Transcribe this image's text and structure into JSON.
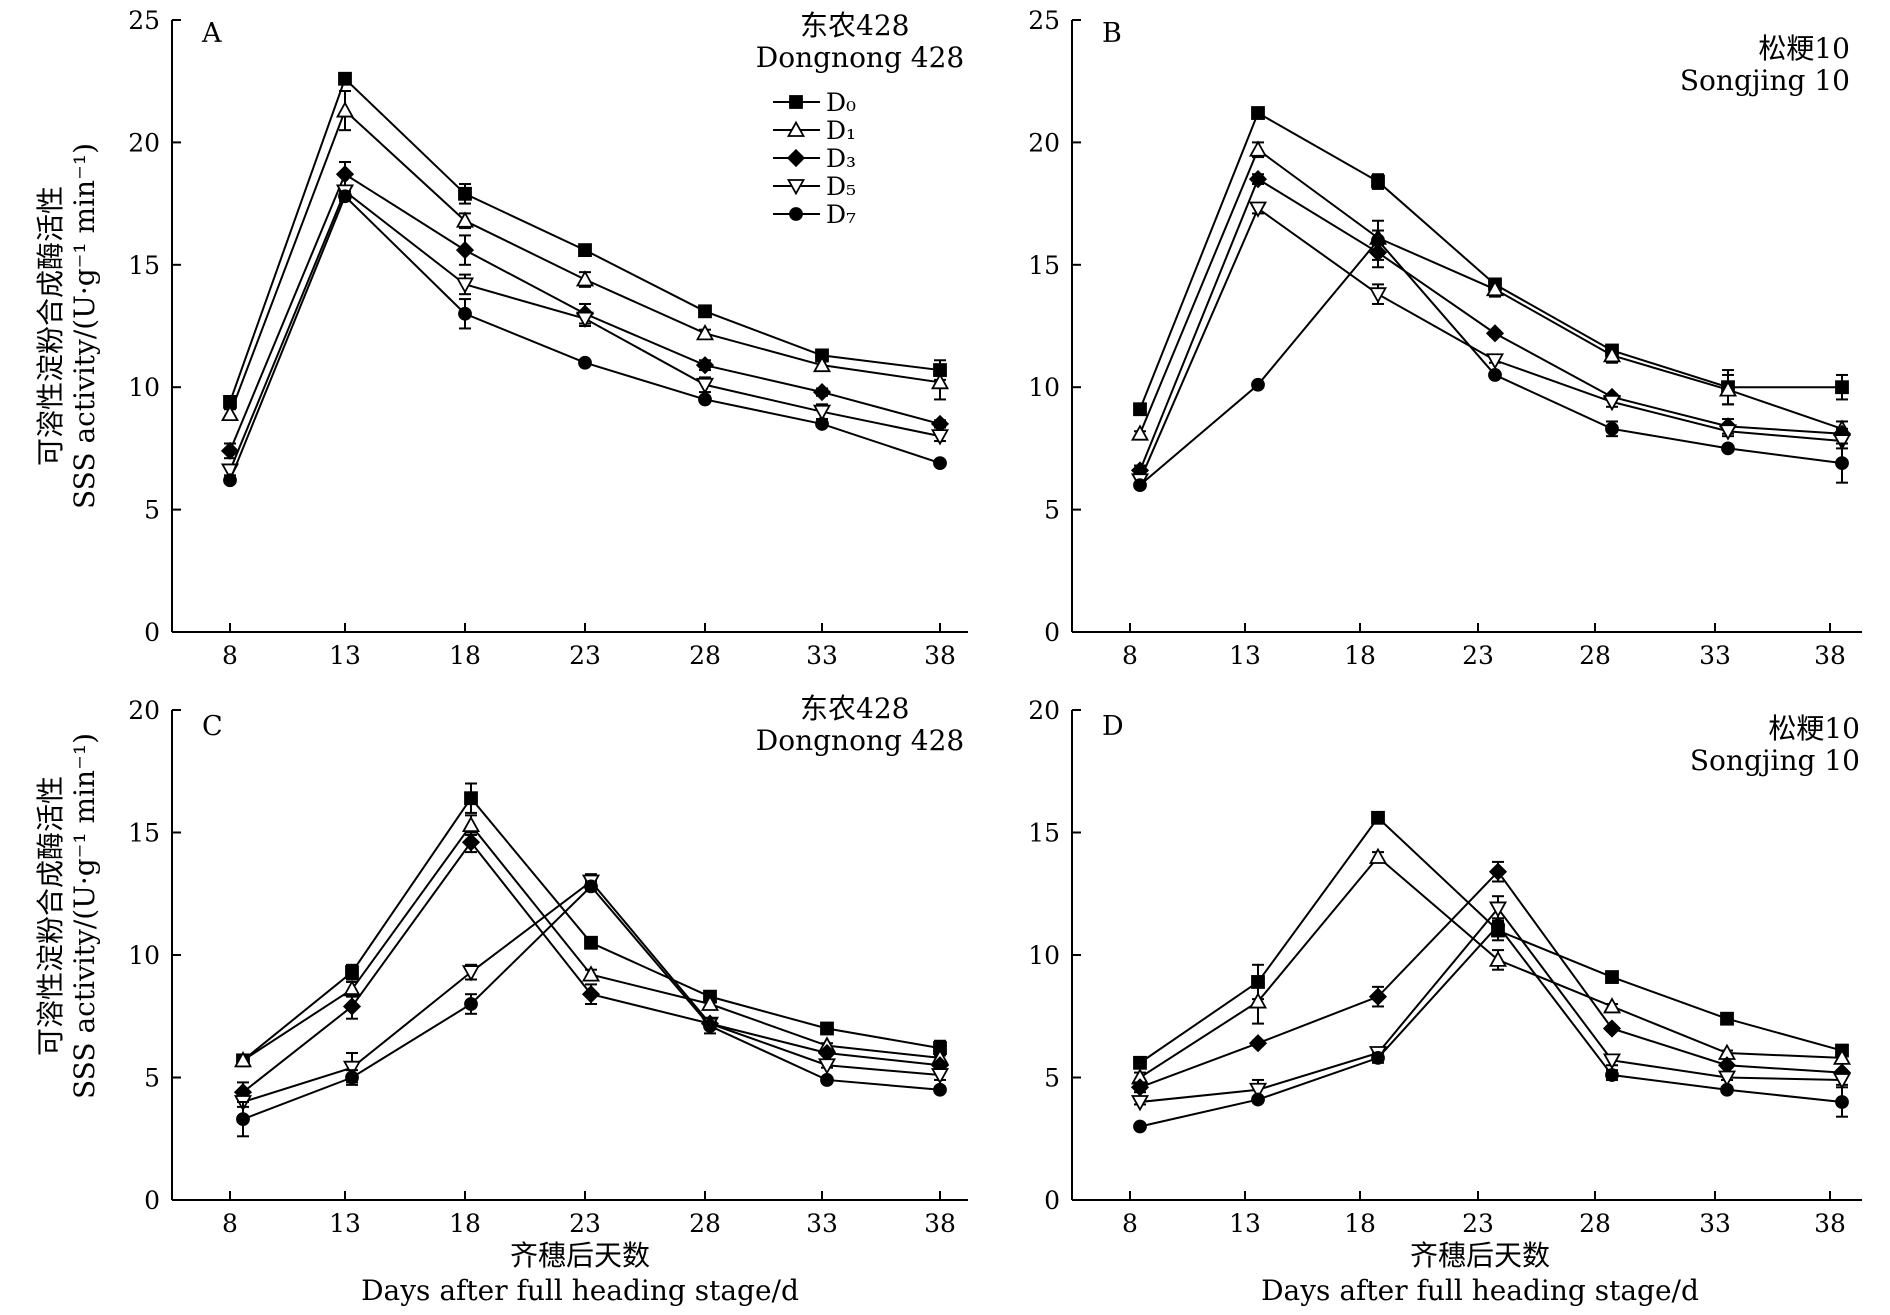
{
  "figure": {
    "ylabel_line1": "可溶性淀粉合成酶活性",
    "ylabel_line2": "SSS activity/(U·g⁻¹ min⁻¹)",
    "xlabel_line1": "齐穗后天数",
    "xlabel_line2": "Days after full heading stage/d"
  },
  "legend": {
    "entries": [
      {
        "label": "D₀",
        "marker": "square-filled"
      },
      {
        "label": "D₁",
        "marker": "triangle-up-open"
      },
      {
        "label": "D₃",
        "marker": "diamond-filled"
      },
      {
        "label": "D₅",
        "marker": "triangle-down-open"
      },
      {
        "label": "D₇",
        "marker": "circle-filled"
      }
    ]
  },
  "chart_data": [
    {
      "panel": "A",
      "type": "line",
      "cultivar_cn": "东农428",
      "cultivar_en": "Dongnong 428",
      "x": [
        8,
        13,
        18,
        23,
        28,
        33,
        38
      ],
      "xticks": [
        "8",
        "13",
        "18",
        "23",
        "28",
        "33",
        "38"
      ],
      "ylim": [
        0,
        25
      ],
      "yticks": [
        "0",
        "5",
        "10",
        "15",
        "20",
        "25"
      ],
      "error_bars": true,
      "legend_position": "top-right",
      "series": [
        {
          "name": "D₀",
          "marker": "square-filled",
          "values": [
            9.4,
            22.6,
            17.9,
            15.6,
            13.1,
            11.3,
            10.7
          ],
          "errors": [
            0.2,
            0.2,
            0.4,
            0.15,
            0.15,
            0.15,
            0.4
          ]
        },
        {
          "name": "D₁",
          "marker": "triangle-up-open",
          "values": [
            8.9,
            21.3,
            16.8,
            14.4,
            12.2,
            10.9,
            10.2
          ],
          "errors": [
            0.2,
            0.8,
            0.3,
            0.3,
            0.15,
            0.15,
            0.7
          ]
        },
        {
          "name": "D₃",
          "marker": "diamond-filled",
          "values": [
            7.4,
            18.7,
            15.6,
            13.0,
            10.9,
            9.8,
            8.5
          ],
          "errors": [
            0.3,
            0.5,
            0.6,
            0.4,
            0.2,
            0.15,
            0.15
          ]
        },
        {
          "name": "D₅",
          "marker": "triangle-down-open",
          "values": [
            6.6,
            18.0,
            14.2,
            12.8,
            10.1,
            9.0,
            8.0
          ],
          "errors": [
            0.2,
            0.2,
            0.4,
            0.3,
            0.3,
            0.3,
            0.2
          ]
        },
        {
          "name": "D₇",
          "marker": "circle-filled",
          "values": [
            6.2,
            17.8,
            13.0,
            11.0,
            9.5,
            8.5,
            6.9
          ],
          "errors": [
            0.1,
            0.2,
            0.6,
            0.1,
            0.1,
            0.1,
            0.1
          ]
        }
      ]
    },
    {
      "panel": "B",
      "type": "line",
      "cultivar_cn": "松粳10",
      "cultivar_en": "Songjing 10",
      "x": [
        8,
        13,
        18,
        23,
        28,
        33,
        38
      ],
      "xticks": [
        "8",
        "13",
        "18",
        "23",
        "28",
        "33",
        "38"
      ],
      "ylim": [
        0,
        25
      ],
      "yticks": [
        "0",
        "5",
        "10",
        "15",
        "20",
        "25"
      ],
      "error_bars": true,
      "series": [
        {
          "name": "D₀",
          "marker": "square-filled",
          "values": [
            9.1,
            21.2,
            18.4,
            14.2,
            11.5,
            10.0,
            10.0
          ],
          "errors": [
            0.1,
            0.1,
            0.3,
            0.2,
            0.2,
            0.7,
            0.5
          ]
        },
        {
          "name": "D₁",
          "marker": "triangle-up-open",
          "values": [
            8.1,
            19.7,
            16.1,
            14.0,
            11.3,
            9.9,
            8.3
          ],
          "errors": [
            0.1,
            0.3,
            0.3,
            0.3,
            0.3,
            0.6,
            0.3
          ]
        },
        {
          "name": "D₃",
          "marker": "diamond-filled",
          "values": [
            6.6,
            18.5,
            15.5,
            12.2,
            9.6,
            8.4,
            8.1
          ],
          "errors": [
            0.2,
            0.2,
            0.6,
            0.1,
            0.1,
            0.3,
            0.2
          ]
        },
        {
          "name": "D₅",
          "marker": "triangle-down-open",
          "values": [
            6.2,
            17.3,
            13.8,
            11.1,
            9.4,
            8.2,
            7.8
          ],
          "errors": [
            0.1,
            0.2,
            0.4,
            0.1,
            0.2,
            0.2,
            0.3
          ]
        },
        {
          "name": "D₇",
          "marker": "circle-filled",
          "values": [
            6.0,
            10.1,
            16.0,
            10.5,
            8.3,
            7.5,
            6.9
          ],
          "errors": [
            0.1,
            0.1,
            0.8,
            0.1,
            0.3,
            0.1,
            0.8
          ]
        }
      ]
    },
    {
      "panel": "C",
      "type": "line",
      "cultivar_cn": "东农428",
      "cultivar_en": "Dongnong 428",
      "x": [
        8,
        13,
        18,
        23,
        28,
        33,
        38
      ],
      "xticks": [
        "8",
        "13",
        "18",
        "23",
        "28",
        "33",
        "38"
      ],
      "ylim": [
        0,
        20
      ],
      "yticks": [
        "0",
        "5",
        "10",
        "15",
        "20"
      ],
      "error_bars": true,
      "series": [
        {
          "name": "D₀",
          "marker": "square-filled",
          "values": [
            5.7,
            9.3,
            16.4,
            10.5,
            8.3,
            7.0,
            6.2
          ],
          "errors": [
            0.1,
            0.3,
            0.6,
            0.1,
            0.1,
            0.1,
            0.3
          ]
        },
        {
          "name": "D₁",
          "marker": "triangle-up-open",
          "values": [
            5.7,
            8.6,
            15.3,
            9.2,
            8.0,
            6.3,
            5.8
          ],
          "errors": [
            0.1,
            0.3,
            0.4,
            0.2,
            0.2,
            0.1,
            0.2
          ]
        },
        {
          "name": "D₃",
          "marker": "diamond-filled",
          "values": [
            4.4,
            7.9,
            14.6,
            8.4,
            7.2,
            6.0,
            5.5
          ],
          "errors": [
            0.4,
            0.5,
            0.4,
            0.4,
            0.2,
            0.1,
            0.1
          ]
        },
        {
          "name": "D₅",
          "marker": "triangle-down-open",
          "values": [
            4.0,
            5.4,
            9.3,
            13.0,
            7.2,
            5.5,
            5.1
          ],
          "errors": [
            0.2,
            0.6,
            0.3,
            0.3,
            0.2,
            0.1,
            0.2
          ]
        },
        {
          "name": "D₇",
          "marker": "circle-filled",
          "values": [
            3.3,
            5.0,
            8.0,
            12.8,
            7.1,
            4.9,
            4.5
          ],
          "errors": [
            0.7,
            0.3,
            0.4,
            0.2,
            0.3,
            0.1,
            0.1
          ]
        }
      ]
    },
    {
      "panel": "D",
      "type": "line",
      "cultivar_cn": "松粳10",
      "cultivar_en": "Songjing 10",
      "x": [
        8,
        13,
        18,
        23,
        28,
        33,
        38
      ],
      "xticks": [
        "8",
        "13",
        "18",
        "23",
        "28",
        "33",
        "38"
      ],
      "ylim": [
        0,
        20
      ],
      "yticks": [
        "0",
        "5",
        "10",
        "15",
        "20"
      ],
      "error_bars": true,
      "series": [
        {
          "name": "D₀",
          "marker": "square-filled",
          "values": [
            5.6,
            8.9,
            15.6,
            11.0,
            9.1,
            7.4,
            6.1
          ],
          "errors": [
            0.2,
            0.7,
            0.1,
            0.4,
            0.1,
            0.1,
            0.2
          ]
        },
        {
          "name": "D₁",
          "marker": "triangle-up-open",
          "values": [
            5.0,
            8.1,
            14.0,
            9.8,
            7.9,
            6.0,
            5.8
          ],
          "errors": [
            0.2,
            0.9,
            0.2,
            0.4,
            0.1,
            0.1,
            0.2
          ]
        },
        {
          "name": "D₃",
          "marker": "diamond-filled",
          "values": [
            4.6,
            6.4,
            8.3,
            13.4,
            7.0,
            5.5,
            5.2
          ],
          "errors": [
            0.2,
            0.1,
            0.4,
            0.4,
            0.1,
            0.1,
            0.1
          ]
        },
        {
          "name": "D₅",
          "marker": "triangle-down-open",
          "values": [
            4.0,
            4.5,
            6.0,
            11.9,
            5.7,
            5.0,
            4.9
          ],
          "errors": [
            0.1,
            0.4,
            0.2,
            0.5,
            0.2,
            0.1,
            0.2
          ]
        },
        {
          "name": "D₇",
          "marker": "circle-filled",
          "values": [
            3.0,
            4.1,
            5.8,
            11.2,
            5.1,
            4.5,
            4.0
          ],
          "errors": [
            0.1,
            0.1,
            0.2,
            0.3,
            0.2,
            0.1,
            0.6
          ]
        }
      ]
    }
  ]
}
